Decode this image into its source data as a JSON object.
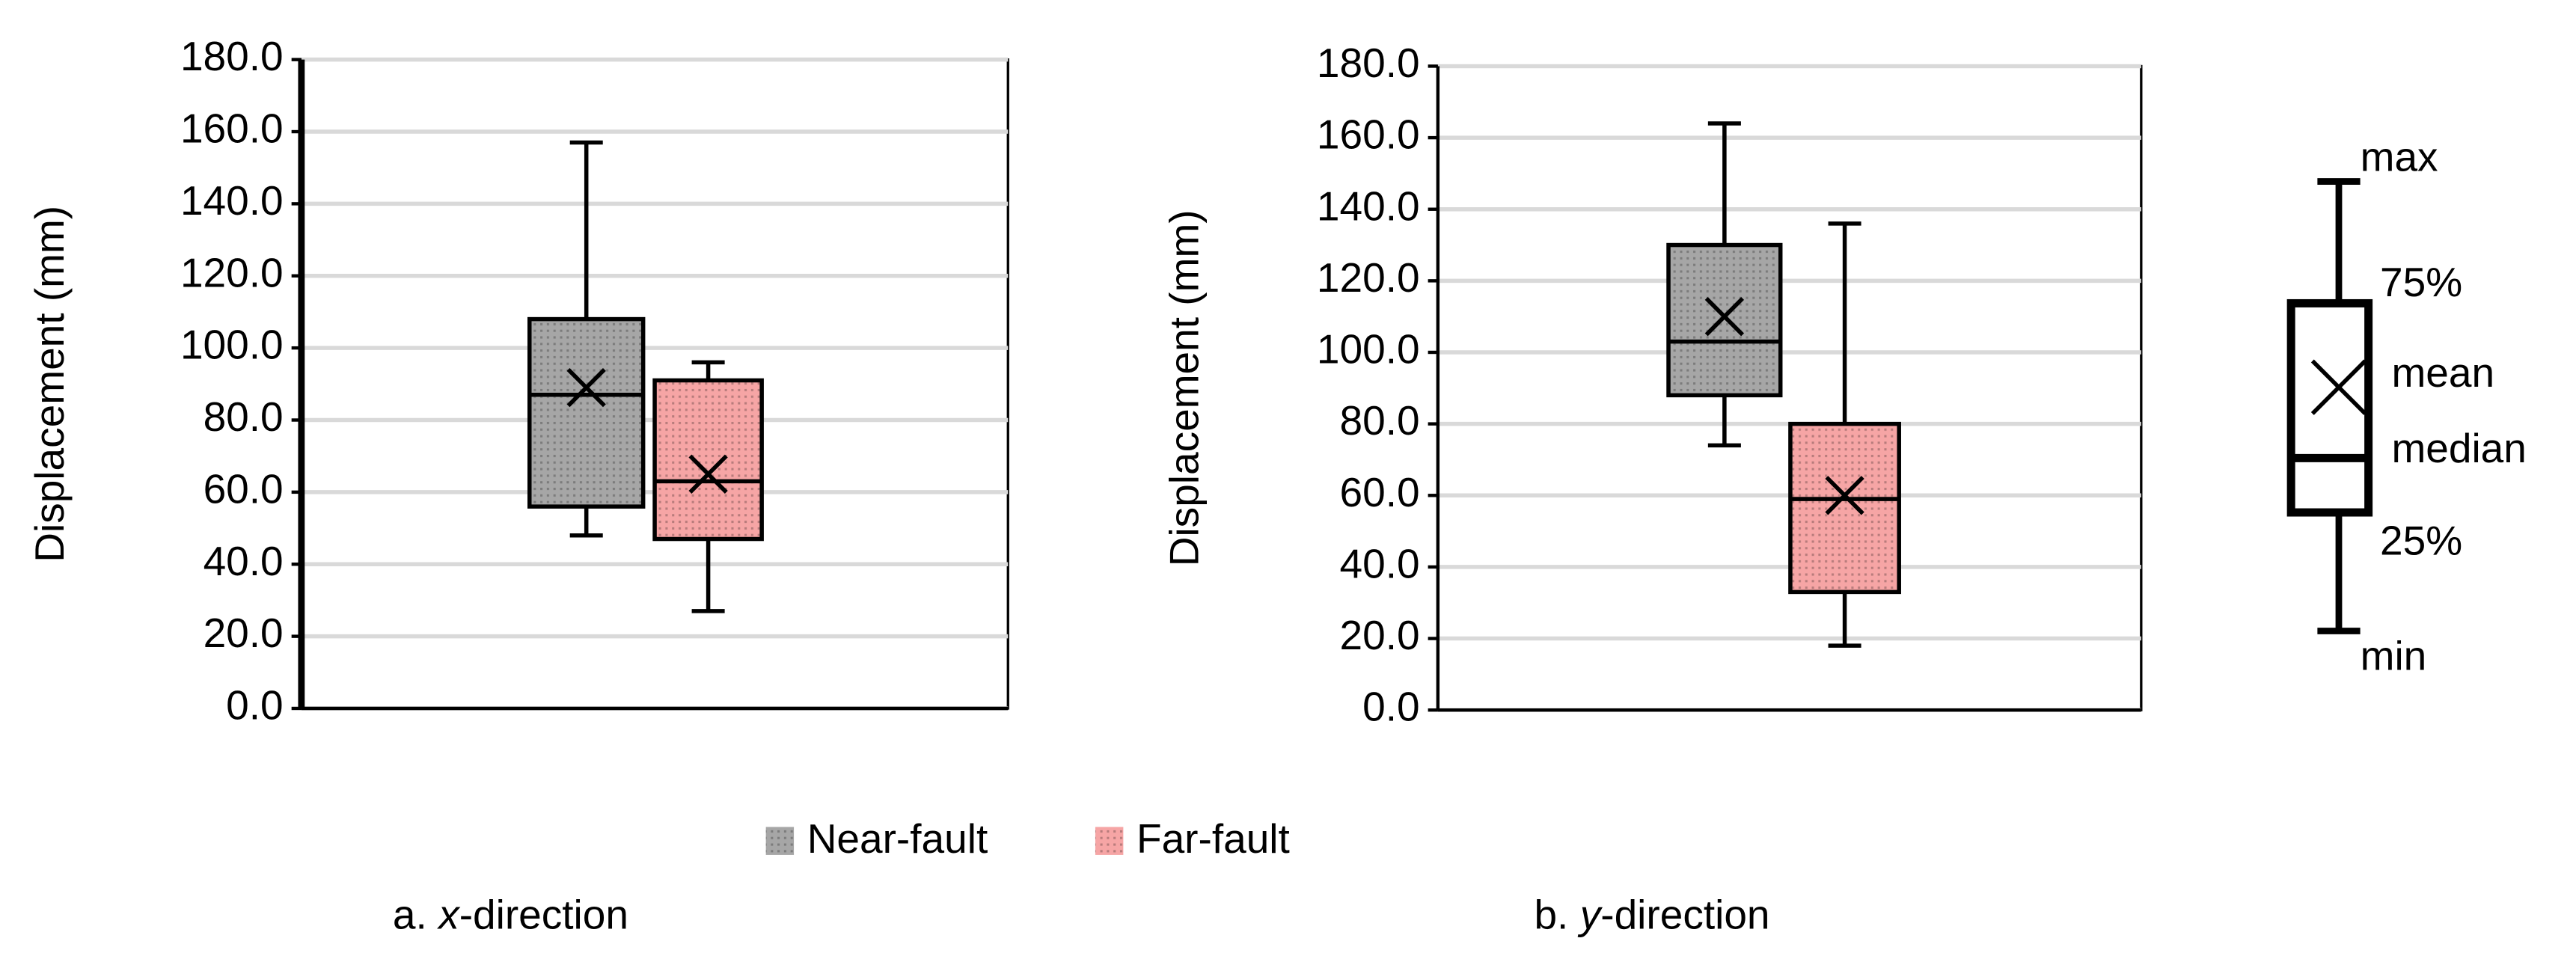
{
  "chart_data": [
    {
      "type": "box",
      "ylabel": "Displacement (mm)",
      "ylim": [
        0,
        180
      ],
      "yticks": [
        {
          "value": 0,
          "label": "0.0"
        },
        {
          "value": 20,
          "label": "20.0"
        },
        {
          "value": 40,
          "label": "40.0"
        },
        {
          "value": 60,
          "label": "60.0"
        },
        {
          "value": 80,
          "label": "80.0"
        },
        {
          "value": 100,
          "label": "100.0"
        },
        {
          "value": 120,
          "label": "120.0"
        },
        {
          "value": 140,
          "label": "140.0"
        },
        {
          "value": 160,
          "label": "160.0"
        },
        {
          "value": 180,
          "label": "180.0"
        }
      ],
      "grid": true,
      "series": [
        {
          "name": "Near-fault",
          "color": "#a6a6a6",
          "min": 48,
          "q1": 56,
          "median": 87,
          "q3": 108,
          "max": 157,
          "mean": 89
        },
        {
          "name": "Far-fault",
          "color": "#f6a5a5",
          "min": 27,
          "q1": 47,
          "median": 63,
          "q3": 91,
          "max": 96,
          "mean": 65
        }
      ],
      "caption": [
        "a.",
        "x",
        "-direction"
      ]
    },
    {
      "type": "box",
      "ylabel": "Displacement (mm)",
      "ylim": [
        0,
        180
      ],
      "yticks": [
        {
          "value": 0,
          "label": "0.0"
        },
        {
          "value": 20,
          "label": "20.0"
        },
        {
          "value": 40,
          "label": "40.0"
        },
        {
          "value": 60,
          "label": "60.0"
        },
        {
          "value": 80,
          "label": "80.0"
        },
        {
          "value": 100,
          "label": "100.0"
        },
        {
          "value": 120,
          "label": "120.0"
        },
        {
          "value": 140,
          "label": "140.0"
        },
        {
          "value": 160,
          "label": "160.0"
        },
        {
          "value": 180,
          "label": "180.0"
        }
      ],
      "grid": true,
      "series": [
        {
          "name": "Near-fault",
          "color": "#a6a6a6",
          "min": 74,
          "q1": 88,
          "median": 103,
          "q3": 130,
          "max": 164,
          "mean": 110
        },
        {
          "name": "Far-fault",
          "color": "#f6a5a5",
          "min": 18,
          "q1": 33,
          "median": 59,
          "q3": 80,
          "max": 136,
          "mean": 60
        }
      ],
      "caption": [
        "b.",
        "y",
        "-direction"
      ]
    }
  ],
  "key": {
    "labels": [
      "max",
      "75%",
      "mean",
      "median",
      "25%",
      "min"
    ]
  }
}
